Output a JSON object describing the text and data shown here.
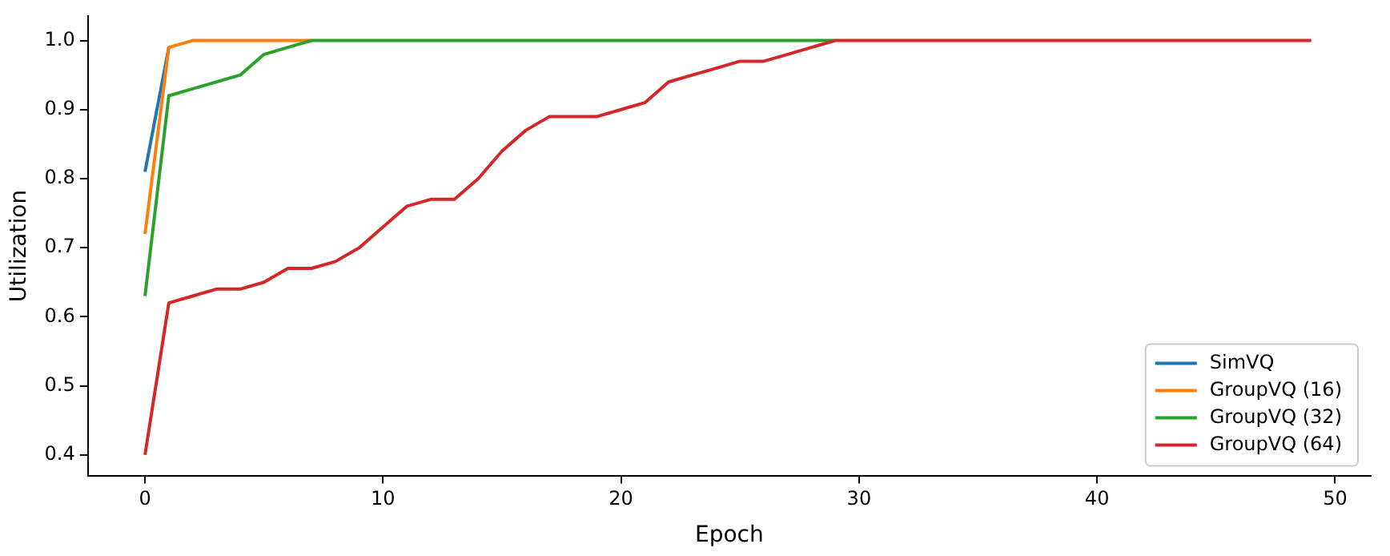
{
  "chart_data": {
    "type": "line",
    "xlabel": "Epoch",
    "ylabel": "Utilization",
    "x": [
      0,
      1,
      2,
      3,
      4,
      5,
      6,
      7,
      8,
      9,
      10,
      11,
      12,
      13,
      14,
      15,
      16,
      17,
      18,
      19,
      20,
      21,
      22,
      23,
      24,
      25,
      26,
      27,
      28,
      29,
      30,
      31,
      32,
      33,
      34,
      35,
      36,
      37,
      38,
      39,
      40,
      41,
      42,
      43,
      44,
      45,
      46,
      47,
      48,
      49
    ],
    "series": [
      {
        "name": "SimVQ",
        "color": "#1f77b4",
        "values": [
          0.81,
          0.99,
          null,
          null,
          null,
          null,
          null,
          null,
          null,
          null,
          null,
          null,
          null,
          null,
          null,
          null,
          null,
          null,
          null,
          null,
          null,
          null,
          null,
          null,
          null,
          null,
          null,
          null,
          null,
          null,
          null,
          null,
          null,
          null,
          null,
          null,
          null,
          null,
          null,
          null,
          null,
          null,
          null,
          null,
          null,
          null,
          null,
          null,
          null,
          null
        ]
      },
      {
        "name": "GroupVQ (16)",
        "color": "#ff7f0e",
        "values": [
          0.72,
          0.99,
          1.0,
          1.0,
          1.0,
          1.0,
          1.0,
          1.0,
          null,
          null,
          null,
          null,
          null,
          null,
          null,
          null,
          null,
          null,
          null,
          null,
          null,
          null,
          null,
          null,
          null,
          null,
          null,
          null,
          null,
          null,
          null,
          null,
          null,
          null,
          null,
          null,
          null,
          null,
          null,
          null,
          null,
          null,
          null,
          null,
          null,
          null,
          null,
          null,
          null,
          null
        ]
      },
      {
        "name": "GroupVQ (32)",
        "color": "#2ca02c",
        "values": [
          0.63,
          0.92,
          0.93,
          0.94,
          0.95,
          0.98,
          0.99,
          1.0,
          1.0,
          1.0,
          1.0,
          1.0,
          1.0,
          1.0,
          1.0,
          1.0,
          1.0,
          1.0,
          1.0,
          1.0,
          1.0,
          1.0,
          1.0,
          1.0,
          1.0,
          1.0,
          1.0,
          1.0,
          1.0,
          1.0,
          null,
          null,
          null,
          null,
          null,
          null,
          null,
          null,
          null,
          null,
          null,
          null,
          null,
          null,
          null,
          null,
          null,
          null,
          null,
          null
        ]
      },
      {
        "name": "GroupVQ (64)",
        "color": "#d62728",
        "values": [
          0.4,
          0.62,
          0.63,
          0.64,
          0.64,
          0.65,
          0.67,
          0.67,
          0.68,
          0.7,
          0.73,
          0.76,
          0.77,
          0.77,
          0.8,
          0.84,
          0.87,
          0.89,
          0.89,
          0.89,
          0.9,
          0.91,
          0.94,
          0.95,
          0.96,
          0.97,
          0.97,
          0.98,
          0.99,
          1.0,
          1.0,
          1.0,
          1.0,
          1.0,
          1.0,
          1.0,
          1.0,
          1.0,
          1.0,
          1.0,
          1.0,
          1.0,
          1.0,
          1.0,
          1.0,
          1.0,
          1.0,
          1.0,
          1.0,
          1.0
        ]
      }
    ],
    "xlim": [
      -2.4,
      51.5
    ],
    "xticks": [
      0,
      10,
      20,
      30,
      40,
      50
    ],
    "ylim": [
      0.37,
      1.035
    ],
    "yticks": [
      0.4,
      0.5,
      0.6,
      0.7,
      0.8,
      0.9,
      {
        "value": 1,
        "label": "1.0"
      }
    ],
    "grid": false,
    "legend": "bottom right",
    "marker": "none",
    "line_style": "solid"
  }
}
